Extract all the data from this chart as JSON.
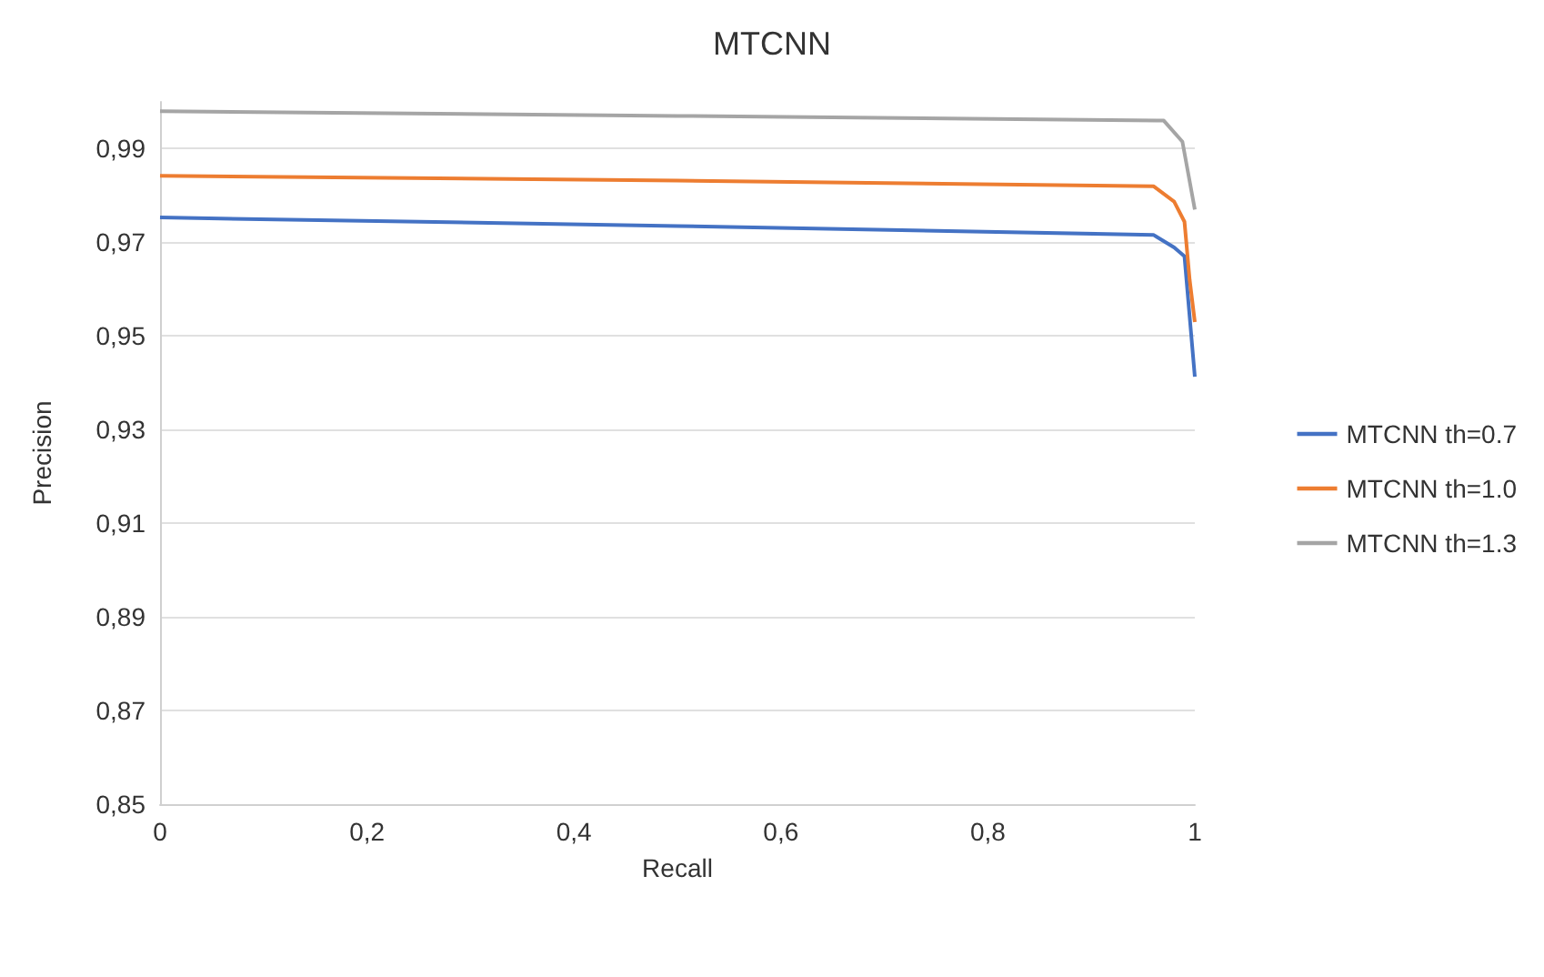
{
  "chart_data": {
    "type": "line",
    "title": "MTCNN",
    "xlabel": "Recall",
    "ylabel": "Precision",
    "xlim": [
      0,
      1
    ],
    "xticks": [
      {
        "value": 0,
        "label": "0"
      },
      {
        "value": 0.2,
        "label": "0,2"
      },
      {
        "value": 0.4,
        "label": "0,4"
      },
      {
        "value": 0.6,
        "label": "0,6"
      },
      {
        "value": 0.8,
        "label": "0,8"
      },
      {
        "value": 1,
        "label": "1"
      }
    ],
    "ylim": [
      0.85,
      1.0
    ],
    "yticks": [
      {
        "value": 0.85,
        "label": "0,85"
      },
      {
        "value": 0.87,
        "label": "0,87"
      },
      {
        "value": 0.89,
        "label": "0,89"
      },
      {
        "value": 0.91,
        "label": "0,91"
      },
      {
        "value": 0.93,
        "label": "0,93"
      },
      {
        "value": 0.95,
        "label": "0,95"
      },
      {
        "value": 0.97,
        "label": "0,97"
      },
      {
        "value": 0.99,
        "label": "0,99"
      }
    ],
    "grid": "y",
    "legend": "right",
    "marker": "none",
    "line_style": "solid",
    "series": [
      {
        "name": "MTCNN th=0.7",
        "color": "#4472c4",
        "x": [
          0,
          0.5,
          0.96,
          0.98,
          0.99,
          1
        ],
        "values": [
          0.9753,
          0.9735,
          0.9716,
          0.9689,
          0.967,
          0.9413
        ]
      },
      {
        "name": "MTCNN th=1.0",
        "color": "#ed7d31",
        "x": [
          0,
          0.5,
          0.96,
          0.98,
          0.99,
          0.995,
          1
        ],
        "values": [
          0.9842,
          0.9832,
          0.982,
          0.9787,
          0.9744,
          0.962,
          0.953
        ]
      },
      {
        "name": "MTCNN th=1.3",
        "color": "#a5a5a5",
        "x": [
          0,
          0.5,
          0.97,
          0.988,
          1
        ],
        "values": [
          0.998,
          0.997,
          0.996,
          0.9915,
          0.977
        ]
      }
    ]
  }
}
